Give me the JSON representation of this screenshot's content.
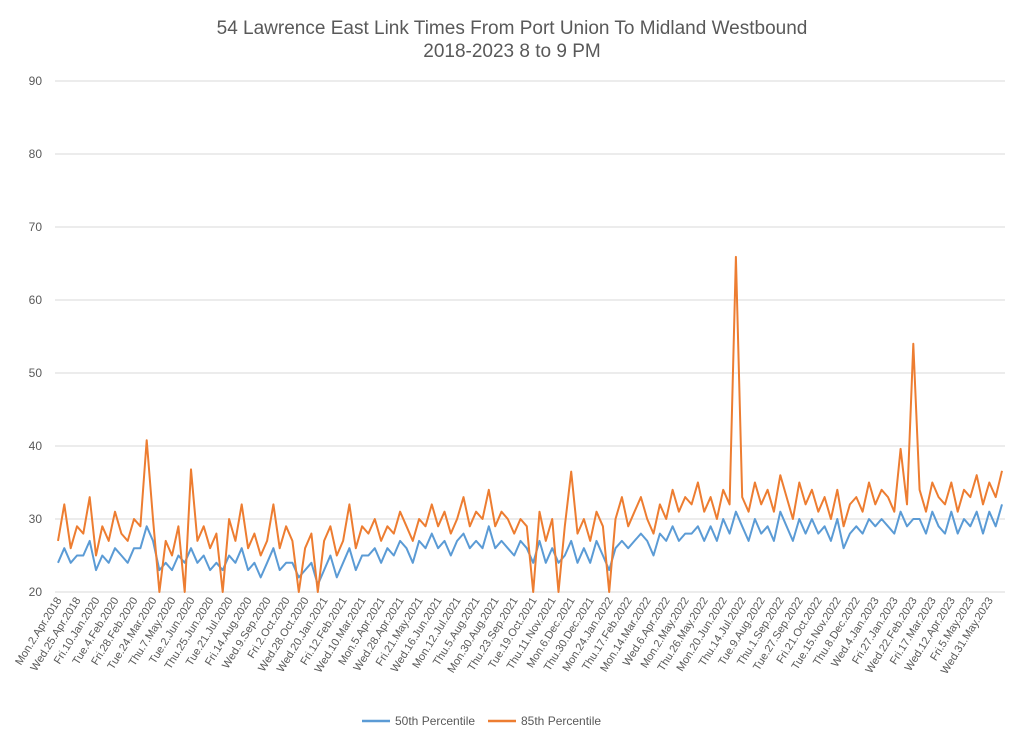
{
  "chart_data": {
    "type": "line",
    "title": "54 Lawrence East Link Times From Port Union To Midland Westbound",
    "subtitle": "2018-2023 8 to 9 PM",
    "xlabel": "",
    "ylabel": "",
    "ylim": [
      20,
      90
    ],
    "yticks": [
      20,
      30,
      40,
      50,
      60,
      70,
      80,
      90
    ],
    "grid": true,
    "legend_position": "bottom",
    "category_labels": [
      "Mon.2.Apr.2018",
      "Wed.25.Apr.2018",
      "Fri.10.Jan.2020",
      "Tue.4.Feb.2020",
      "Fri.28.Feb.2020",
      "Tue.24.Mar.2020",
      "Thu.7.May.2020",
      "Tue.2.Jun.2020",
      "Thu.25.Jun.2020",
      "Tue.21.Jul.2020",
      "Fri.14.Aug.2020",
      "Wed.9.Sep.2020",
      "Fri.2.Oct.2020",
      "Wed.28.Oct.2020",
      "Wed.20.Jan.2021",
      "Fri.12.Feb.2021",
      "Wed.10.Mar.2021",
      "Mon.5.Apr.2021",
      "Wed.28.Apr.2021",
      "Fri.21.May.2021",
      "Wed.16.Jun.2021",
      "Mon.12.Jul.2021",
      "Thu.5.Aug.2021",
      "Mon.30.Aug.2021",
      "Thu.23.Sep.2021",
      "Tue.19.Oct.2021",
      "Thu.11.Nov.2021",
      "Mon.6.Dec.2021",
      "Thu.30.Dec.2021",
      "Mon.24.Jan.2022",
      "Thu.17.Feb.2022",
      "Mon.14.Mar.2022",
      "Wed.6.Apr.2022",
      "Mon.2.May.2022",
      "Thu.26.May.2022",
      "Mon.20.Jun.2022",
      "Thu.14.Jul.2022",
      "Tue.9.Aug.2022",
      "Thu.1.Sep.2022",
      "Tue.27.Sep.2022",
      "Fri.21.Oct.2022",
      "Tue.15.Nov.2022",
      "Thu.8.Dec.2022",
      "Wed.4.Jan.2023",
      "Fri.27.Jan.2023",
      "Wed.22.Feb.2023",
      "Fri.17.Mar.2023",
      "Wed.12.Apr.2023",
      "Fri.5.May.2023",
      "Wed.31.May.2023"
    ],
    "points_per_label": 3,
    "series": [
      {
        "name": "50th Percentile",
        "color": "#5b9bd5",
        "values": [
          24,
          26,
          24,
          25,
          25,
          27,
          23,
          25,
          24,
          26,
          25,
          24,
          26,
          26,
          29,
          27,
          23,
          24,
          23,
          25,
          24,
          26,
          24,
          25,
          23,
          24,
          23,
          25,
          24,
          26,
          23,
          24,
          22,
          24,
          26,
          23,
          24,
          24,
          22,
          23,
          24,
          21,
          23,
          25,
          22,
          24,
          26,
          23,
          25,
          25,
          26,
          24,
          26,
          25,
          27,
          26,
          24,
          27,
          26,
          28,
          26,
          27,
          25,
          27,
          28,
          26,
          27,
          26,
          29,
          26,
          27,
          26,
          25,
          27,
          26,
          24,
          27,
          24,
          26,
          24,
          25,
          27,
          24,
          26,
          24,
          27,
          25,
          23,
          26,
          27,
          26,
          27,
          28,
          27,
          25,
          28,
          27,
          29,
          27,
          28,
          28,
          29,
          27,
          29,
          27,
          30,
          28,
          31,
          29,
          27,
          30,
          28,
          29,
          27,
          31,
          29,
          27,
          30,
          28,
          30,
          28,
          29,
          27,
          30,
          26,
          28,
          29,
          28,
          30,
          29,
          30,
          29,
          28,
          31,
          29,
          30,
          30,
          28,
          31,
          29,
          28,
          31,
          28,
          30,
          29,
          31,
          28,
          31,
          29,
          32
        ]
      },
      {
        "name": "85th Percentile",
        "color": "#ed7d31",
        "values": [
          27,
          32,
          26,
          29,
          28,
          33,
          25,
          29,
          27,
          31,
          28,
          27,
          30,
          29,
          40.8,
          30,
          20,
          27,
          25,
          29,
          20,
          36.8,
          27,
          29,
          26,
          28,
          20,
          30,
          27,
          32,
          26,
          28,
          25,
          27,
          32,
          26,
          29,
          27,
          20,
          26,
          28,
          20,
          27,
          29,
          25,
          27,
          32,
          26,
          29,
          28,
          30,
          27,
          29,
          28,
          31,
          29,
          27,
          30,
          29,
          32,
          29,
          31,
          28,
          30,
          33,
          29,
          31,
          30,
          34,
          29,
          31,
          30,
          28,
          30,
          29,
          20,
          31,
          27,
          30,
          20,
          29,
          36.5,
          28,
          30,
          27,
          31,
          29,
          20,
          30,
          33,
          29,
          31,
          33,
          30,
          28,
          32,
          30,
          34,
          31,
          33,
          32,
          35,
          31,
          33,
          30,
          34,
          32,
          65.9,
          33,
          31,
          35,
          32,
          34,
          31,
          36,
          33,
          30,
          35,
          32,
          34,
          31,
          33,
          30,
          34,
          29,
          32,
          33,
          31,
          35,
          32,
          34,
          33,
          31,
          39.6,
          32,
          54,
          34,
          31,
          35,
          33,
          32,
          35,
          31,
          34,
          33,
          36,
          32,
          35,
          33,
          36.6
        ]
      }
    ]
  }
}
